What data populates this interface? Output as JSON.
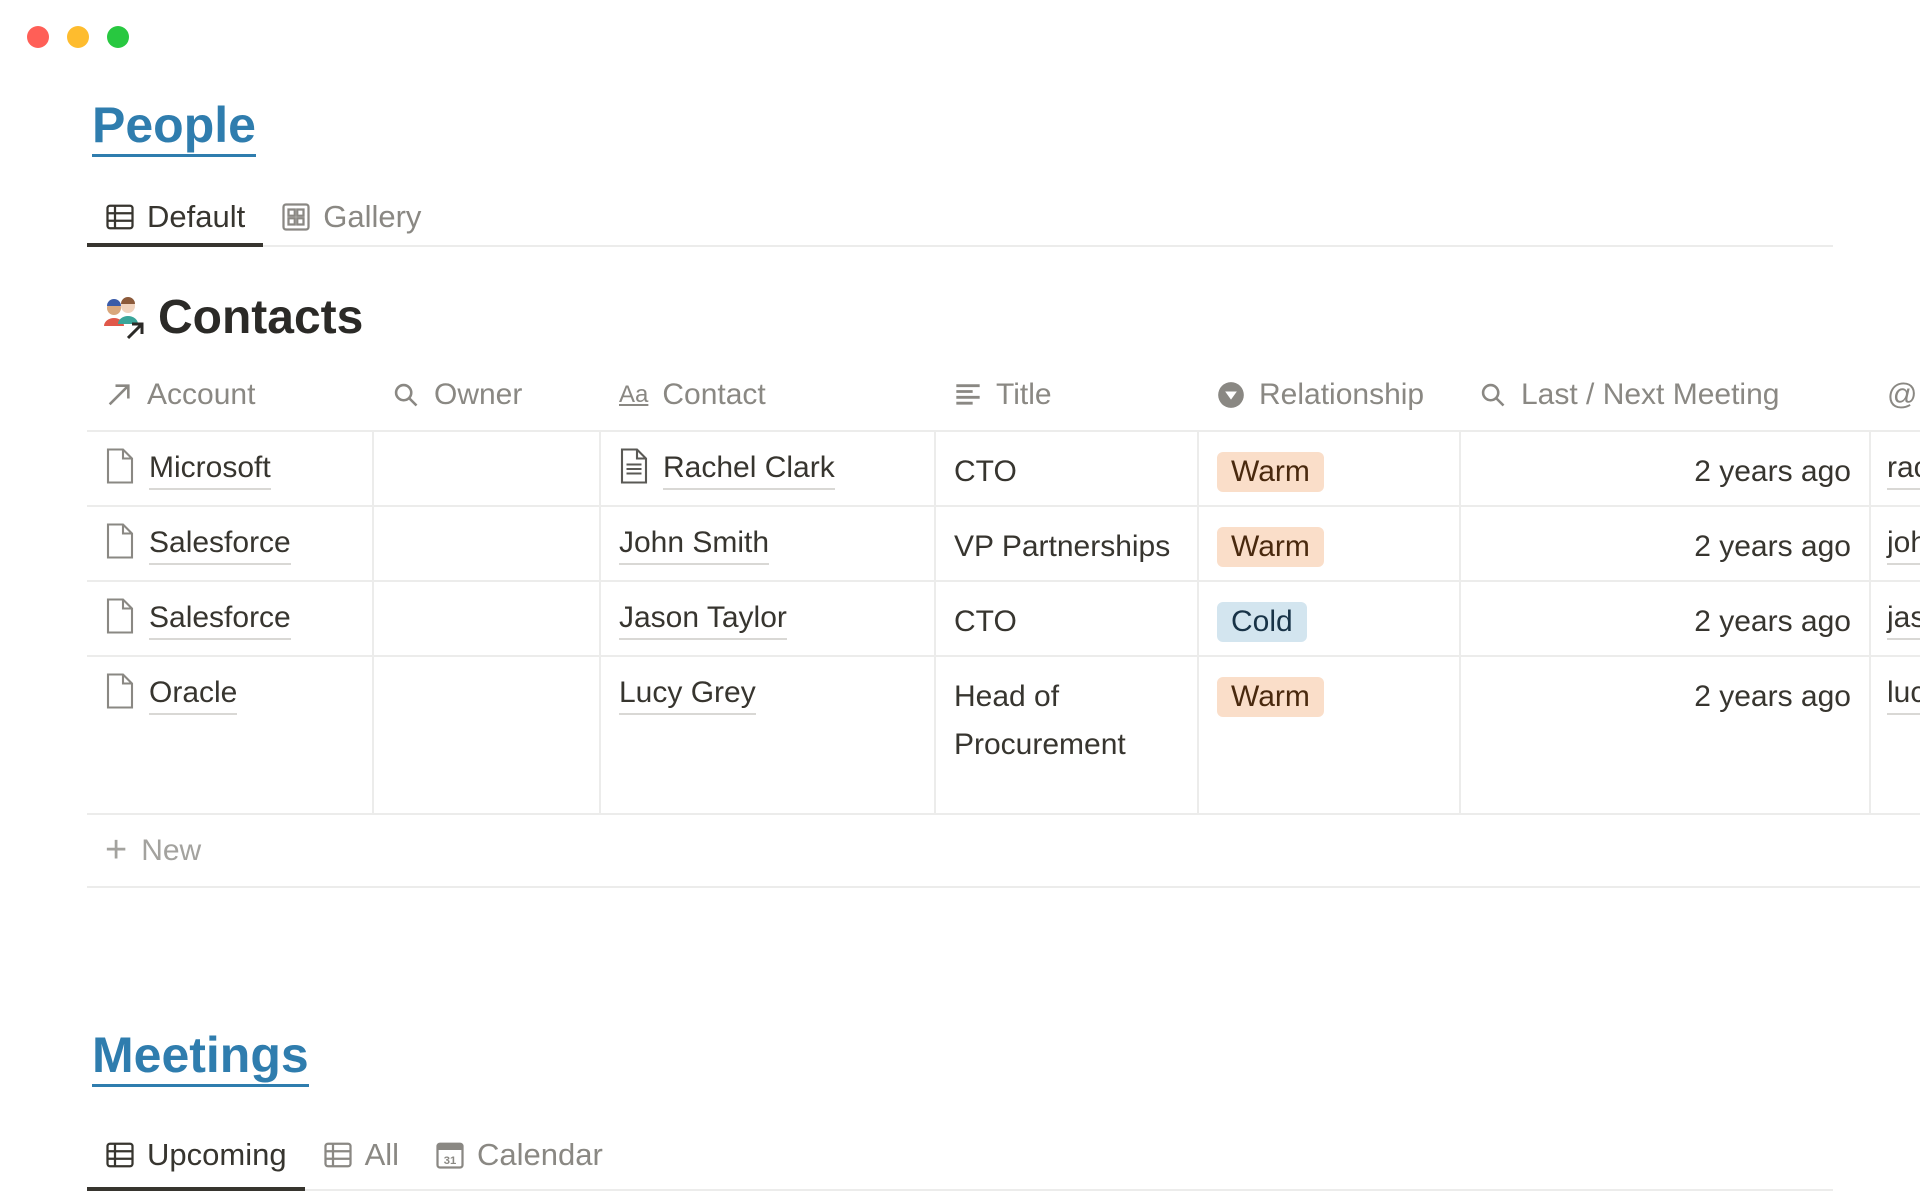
{
  "window": {
    "controls": {
      "close_color": "#ff5f57",
      "minimize_color": "#febc2e",
      "maximize_color": "#28c840"
    }
  },
  "people": {
    "title": "People",
    "tabs": [
      {
        "label": "Default",
        "icon": "table-icon",
        "active": true
      },
      {
        "label": "Gallery",
        "icon": "gallery-icon",
        "active": false
      }
    ],
    "database": {
      "title": "Contacts",
      "icon": "people-arrow-icon",
      "columns": [
        {
          "label": "Account",
          "icon": "relation-arrow-icon"
        },
        {
          "label": "Owner",
          "icon": "search-icon"
        },
        {
          "label": "Contact",
          "icon": "text-aa-icon"
        },
        {
          "label": "Title",
          "icon": "lines-icon"
        },
        {
          "label": "Relationship",
          "icon": "select-icon"
        },
        {
          "label": "Last / Next Meeting",
          "icon": "search-icon"
        },
        {
          "label": "@",
          "icon": "at-icon"
        }
      ],
      "rows": [
        {
          "account": "Microsoft",
          "owner": "",
          "contact": "Rachel Clark",
          "contact_has_page_icon": true,
          "title": "CTO",
          "relationship": "Warm",
          "meeting": "2 years ago",
          "email": "rac"
        },
        {
          "account": "Salesforce",
          "owner": "",
          "contact": "John Smith",
          "contact_has_page_icon": false,
          "title": "VP Partnerships",
          "relationship": "Warm",
          "meeting": "2 years ago",
          "email": "joh"
        },
        {
          "account": "Salesforce",
          "owner": "",
          "contact": "Jason Taylor",
          "contact_has_page_icon": false,
          "title": "CTO",
          "relationship": "Cold",
          "meeting": "2 years ago",
          "email": "jas"
        },
        {
          "account": "Oracle",
          "owner": "",
          "contact": "Lucy Grey",
          "contact_has_page_icon": false,
          "title": "Head of Procurement",
          "relationship": "Warm",
          "meeting": "2 years ago",
          "email": "luc"
        }
      ],
      "new_label": "New",
      "tag_colors": {
        "Warm": {
          "bg": "#fadec9",
          "fg": "#49290e"
        },
        "Cold": {
          "bg": "#d3e5ef",
          "fg": "#183347"
        }
      }
    }
  },
  "meetings": {
    "title": "Meetings",
    "tabs": [
      {
        "label": "Upcoming",
        "icon": "table-icon",
        "active": true
      },
      {
        "label": "All",
        "icon": "table-icon",
        "active": false
      },
      {
        "label": "Calendar",
        "icon": "calendar-icon",
        "active": false
      },
      {
        "calendar_day": "31"
      }
    ]
  }
}
